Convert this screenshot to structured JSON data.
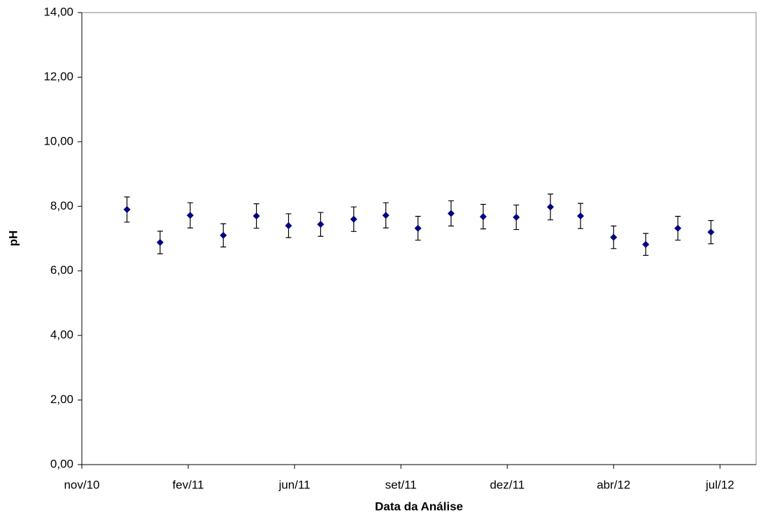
{
  "chart_data": {
    "type": "scatter",
    "x_label": "Data da Análise",
    "y_label": "pH",
    "x": [
      40528,
      40561,
      40591,
      40624,
      40657,
      40689,
      40721,
      40754,
      40786,
      40818,
      40851,
      40883,
      40916,
      40950,
      40980,
      41013,
      41045,
      41077,
      41110
    ],
    "values": [
      7.9,
      6.88,
      7.72,
      7.1,
      7.7,
      7.4,
      7.44,
      7.6,
      7.72,
      7.32,
      7.78,
      7.68,
      7.66,
      7.98,
      7.7,
      7.04,
      6.82,
      7.32,
      7.2
    ],
    "errors": [
      0.39,
      0.35,
      0.39,
      0.36,
      0.38,
      0.37,
      0.37,
      0.38,
      0.39,
      0.37,
      0.39,
      0.38,
      0.38,
      0.4,
      0.39,
      0.35,
      0.34,
      0.37,
      0.36
    ],
    "color": "#000080",
    "xlim": [
      40483,
      41155
    ],
    "xticks": [
      {
        "value": 40483,
        "label": "nov/10"
      },
      {
        "value": 40589,
        "label": "fev/11"
      },
      {
        "value": 40695,
        "label": "jun/11"
      },
      {
        "value": 40801,
        "label": "set/11"
      },
      {
        "value": 40907,
        "label": "dez/11"
      },
      {
        "value": 41013,
        "label": "abr/12"
      },
      {
        "value": 41119,
        "label": "jul/12"
      }
    ],
    "ylim": [
      0,
      14
    ],
    "yticks": [
      {
        "value": 0,
        "label": "0,00"
      },
      {
        "value": 2,
        "label": "2,00"
      },
      {
        "value": 4,
        "label": "4,00"
      },
      {
        "value": 6,
        "label": "6,00"
      },
      {
        "value": 8,
        "label": "8,00"
      },
      {
        "value": 10,
        "label": "10,00"
      },
      {
        "value": 12,
        "label": "12,00"
      },
      {
        "value": 14,
        "label": "14,00"
      }
    ],
    "grid": false
  }
}
